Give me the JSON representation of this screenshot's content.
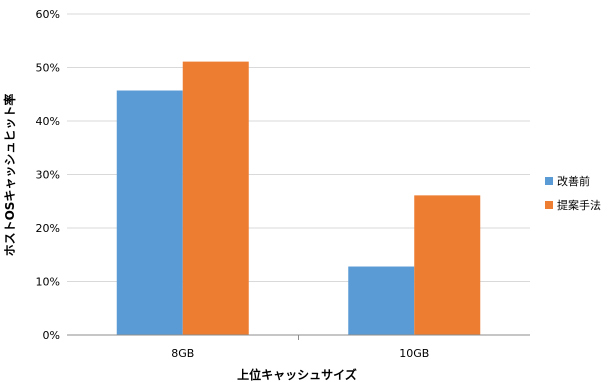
{
  "chart_data": {
    "type": "bar",
    "title": "",
    "xlabel": "上位キャッシュサイズ",
    "ylabel": "ホストOSキャッシュヒット率",
    "categories": [
      "8GB",
      "10GB"
    ],
    "series": [
      {
        "name": "改善前",
        "values": [
          45.7,
          12.8
        ],
        "color": "#5b9bd5"
      },
      {
        "name": "提案手法",
        "values": [
          51.1,
          26.1
        ],
        "color": "#ed7d31"
      }
    ],
    "ylim": [
      0,
      60
    ],
    "y_ticks": [
      "0%",
      "10%",
      "20%",
      "30%",
      "40%",
      "50%",
      "60%"
    ],
    "grid": true,
    "legend_position": "right"
  }
}
